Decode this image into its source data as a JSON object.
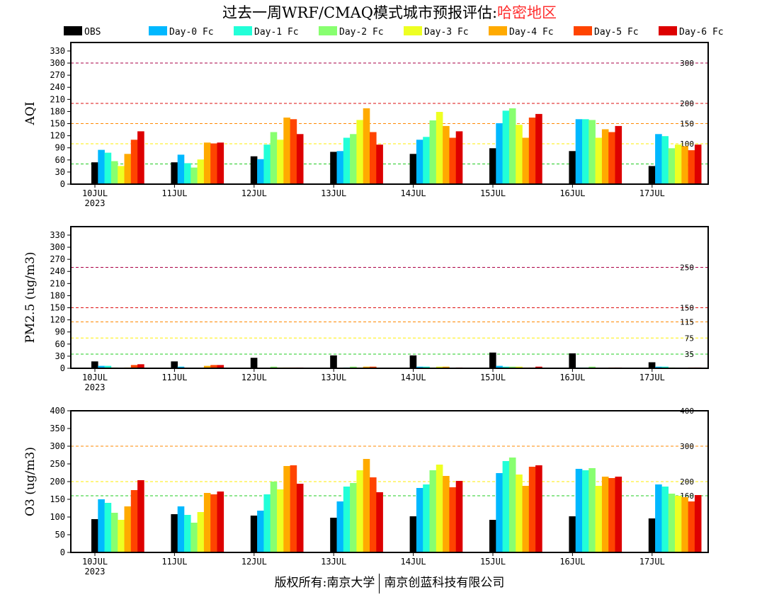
{
  "title": {
    "main": "过去一周WRF/CMAQ模式城市预报评估:",
    "region": "哈密地区"
  },
  "footer": {
    "left": "版权所有:南京大学",
    "right": "南京创蓝科技有限公司"
  },
  "legend": [
    {
      "label": "OBS",
      "color": "#000000"
    },
    {
      "label": "Day-0 Fc",
      "color": "#00b8ff"
    },
    {
      "label": "Day-1 Fc",
      "color": "#22ffd8"
    },
    {
      "label": "Day-2 Fc",
      "color": "#88ff70"
    },
    {
      "label": "Day-3 Fc",
      "color": "#eeff22"
    },
    {
      "label": "Day-4 Fc",
      "color": "#ffaa00"
    },
    {
      "label": "Day-5 Fc",
      "color": "#ff4400"
    },
    {
      "label": "Day-6 Fc",
      "color": "#dd0000"
    }
  ],
  "chart_data": [
    {
      "type": "bar",
      "ylabel": "AQI",
      "categories": [
        "10JUL",
        "11JUL",
        "12JUL",
        "13JUL",
        "14JUL",
        "15JUL",
        "16JUL",
        "17JUL"
      ],
      "year_label": "2023",
      "ylim": [
        0,
        351
      ],
      "yticks": [
        0,
        30,
        60,
        90,
        120,
        150,
        180,
        210,
        240,
        270,
        300,
        330
      ],
      "thresholds": [
        {
          "value": 50,
          "label": "50",
          "color": "#22cc22"
        },
        {
          "value": 100,
          "label": "100",
          "color": "#ffee00"
        },
        {
          "value": 150,
          "label": "150",
          "color": "#ff8800"
        },
        {
          "value": 200,
          "label": "200",
          "color": "#dd1111"
        },
        {
          "value": 300,
          "label": "300",
          "color": "#aa0044"
        }
      ],
      "series": [
        {
          "name": "OBS",
          "values": [
            54,
            54,
            69,
            80,
            75,
            89,
            82,
            45
          ]
        },
        {
          "name": "Day-0 Fc",
          "values": [
            85,
            73,
            62,
            82,
            110,
            151,
            161,
            124
          ]
        },
        {
          "name": "Day-1 Fc",
          "values": [
            78,
            52,
            98,
            115,
            117,
            182,
            161,
            119
          ]
        },
        {
          "name": "Day-2 Fc",
          "values": [
            57,
            41,
            129,
            124,
            158,
            188,
            159,
            89
          ]
        },
        {
          "name": "Day-3 Fc",
          "values": [
            45,
            61,
            110,
            159,
            179,
            147,
            115,
            98
          ]
        },
        {
          "name": "Day-4 Fc",
          "values": [
            75,
            103,
            165,
            188,
            144,
            115,
            136,
            94
          ]
        },
        {
          "name": "Day-5 Fc",
          "values": [
            110,
            101,
            161,
            129,
            115,
            165,
            129,
            84
          ]
        },
        {
          "name": "Day-6 Fc",
          "values": [
            131,
            103,
            124,
            98,
            131,
            174,
            144,
            98
          ]
        }
      ]
    },
    {
      "type": "bar",
      "ylabel": "PM2.5 (ug/m3)",
      "categories": [
        "10JUL",
        "11JUL",
        "12JUL",
        "13JUL",
        "14JUL",
        "15JUL",
        "16JUL",
        "17JUL"
      ],
      "year_label": "2023",
      "ylim": [
        0,
        351
      ],
      "yticks": [
        0,
        30,
        60,
        90,
        120,
        150,
        180,
        210,
        240,
        270,
        300,
        330
      ],
      "thresholds": [
        {
          "value": 35,
          "label": "35",
          "color": "#22cc22"
        },
        {
          "value": 75,
          "label": "75",
          "color": "#ffee00"
        },
        {
          "value": 115,
          "label": "115",
          "color": "#ff8800"
        },
        {
          "value": 150,
          "label": "150",
          "color": "#dd1111"
        },
        {
          "value": 250,
          "label": "250",
          "color": "#aa0044"
        }
      ],
      "series": [
        {
          "name": "OBS",
          "values": [
            17,
            17,
            26,
            32,
            32,
            39,
            37,
            15
          ]
        },
        {
          "name": "Day-0 Fc",
          "values": [
            6,
            4,
            0,
            0,
            4,
            6,
            2,
            4
          ]
        },
        {
          "name": "Day-1 Fc",
          "values": [
            6,
            0,
            0,
            2,
            4,
            4,
            2,
            4
          ]
        },
        {
          "name": "Day-2 Fc",
          "values": [
            2,
            0,
            4,
            4,
            2,
            4,
            4,
            2
          ]
        },
        {
          "name": "Day-3 Fc",
          "values": [
            0,
            0,
            2,
            2,
            4,
            4,
            0,
            0
          ]
        },
        {
          "name": "Day-4 Fc",
          "values": [
            2,
            6,
            2,
            4,
            4,
            2,
            0,
            0
          ]
        },
        {
          "name": "Day-5 Fc",
          "values": [
            8,
            8,
            2,
            4,
            0,
            2,
            2,
            2
          ]
        },
        {
          "name": "Day-6 Fc",
          "values": [
            10,
            8,
            2,
            1,
            2,
            4,
            2,
            2
          ]
        }
      ]
    },
    {
      "type": "bar",
      "ylabel": "O3 (ug/m3)",
      "categories": [
        "10JUL",
        "11JUL",
        "12JUL",
        "13JUL",
        "14JUL",
        "15JUL",
        "16JUL",
        "17JUL"
      ],
      "year_label": "2023",
      "ylim": [
        0,
        400
      ],
      "yticks": [
        0,
        50,
        100,
        150,
        200,
        250,
        300,
        350,
        400
      ],
      "thresholds": [
        {
          "value": 160,
          "label": "160",
          "color": "#22cc22"
        },
        {
          "value": 200,
          "label": "200",
          "color": "#ffee00"
        },
        {
          "value": 300,
          "label": "300",
          "color": "#ff8800"
        },
        {
          "value": 400,
          "label": "400",
          "color": "#dd1111"
        }
      ],
      "series": [
        {
          "name": "OBS",
          "values": [
            94,
            108,
            104,
            98,
            102,
            92,
            102,
            96
          ]
        },
        {
          "name": "Day-0 Fc",
          "values": [
            150,
            130,
            118,
            144,
            182,
            224,
            236,
            192
          ]
        },
        {
          "name": "Day-1 Fc",
          "values": [
            140,
            106,
            164,
            186,
            192,
            258,
            232,
            186
          ]
        },
        {
          "name": "Day-2 Fc",
          "values": [
            112,
            84,
            200,
            196,
            232,
            268,
            238,
            166
          ]
        },
        {
          "name": "Day-3 Fc",
          "values": [
            92,
            114,
            178,
            232,
            248,
            220,
            188,
            160
          ]
        },
        {
          "name": "Day-4 Fc",
          "values": [
            130,
            168,
            244,
            264,
            216,
            188,
            214,
            156
          ]
        },
        {
          "name": "Day-5 Fc",
          "values": [
            176,
            164,
            246,
            212,
            184,
            242,
            210,
            144
          ]
        },
        {
          "name": "Day-6 Fc",
          "values": [
            204,
            172,
            194,
            170,
            202,
            246,
            214,
            162
          ]
        }
      ]
    }
  ]
}
